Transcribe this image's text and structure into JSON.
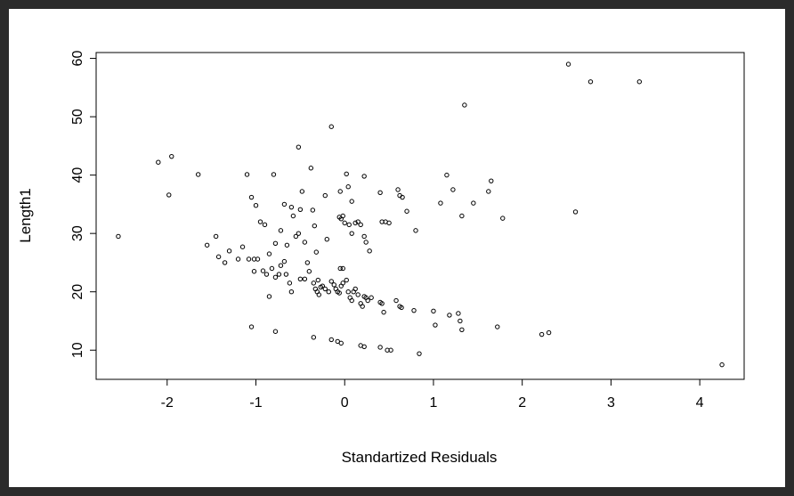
{
  "chart_data": {
    "type": "scatter",
    "xlabel": "Standartized Residuals",
    "ylabel": "Length1",
    "xlim": [
      -2.8,
      4.5
    ],
    "ylim": [
      5,
      61
    ],
    "x_ticks": [
      -2,
      -1,
      0,
      1,
      2,
      3,
      4
    ],
    "y_ticks": [
      10,
      20,
      30,
      40,
      50,
      60
    ],
    "grid": false,
    "points": [
      [
        -2.55,
        29.5
      ],
      [
        -2.1,
        42.2
      ],
      [
        -1.95,
        43.2
      ],
      [
        -1.98,
        36.6
      ],
      [
        -1.65,
        40.1
      ],
      [
        -1.55,
        28.0
      ],
      [
        -1.45,
        29.5
      ],
      [
        -1.42,
        26.0
      ],
      [
        -1.35,
        25.0
      ],
      [
        -1.3,
        27.0
      ],
      [
        -1.2,
        25.6
      ],
      [
        -1.15,
        27.7
      ],
      [
        -1.08,
        25.6
      ],
      [
        -1.02,
        25.6
      ],
      [
        -0.98,
        25.6
      ],
      [
        -1.1,
        40.1
      ],
      [
        -1.05,
        36.2
      ],
      [
        -1.0,
        34.8
      ],
      [
        -0.95,
        32.0
      ],
      [
        -0.9,
        31.5
      ],
      [
        -0.85,
        26.5
      ],
      [
        -1.02,
        23.5
      ],
      [
        -0.92,
        23.6
      ],
      [
        -0.88,
        23.0
      ],
      [
        -0.82,
        24.0
      ],
      [
        -0.78,
        22.5
      ],
      [
        -0.74,
        23.0
      ],
      [
        -0.72,
        24.5
      ],
      [
        -0.68,
        25.2
      ],
      [
        -0.66,
        23.0
      ],
      [
        -0.62,
        21.5
      ],
      [
        -0.6,
        20.0
      ],
      [
        -0.85,
        19.2
      ],
      [
        -0.8,
        40.1
      ],
      [
        -0.78,
        28.3
      ],
      [
        -0.72,
        30.5
      ],
      [
        -0.68,
        35.0
      ],
      [
        -0.65,
        28.0
      ],
      [
        -0.6,
        34.5
      ],
      [
        -0.58,
        33.0
      ],
      [
        -0.55,
        29.5
      ],
      [
        -0.52,
        30.0
      ],
      [
        -0.5,
        34.1
      ],
      [
        -0.48,
        37.2
      ],
      [
        -0.45,
        28.5
      ],
      [
        -0.42,
        25.0
      ],
      [
        -0.52,
        44.8
      ],
      [
        -0.38,
        41.2
      ],
      [
        -0.36,
        34.0
      ],
      [
        -0.34,
        31.3
      ],
      [
        -0.32,
        26.8
      ],
      [
        -0.3,
        22.0
      ],
      [
        -0.15,
        48.3
      ],
      [
        -0.22,
        36.5
      ],
      [
        -0.2,
        29.0
      ],
      [
        -0.5,
        22.2
      ],
      [
        -0.45,
        22.2
      ],
      [
        -0.4,
        23.5
      ],
      [
        -0.35,
        21.5
      ],
      [
        -0.33,
        20.5
      ],
      [
        -0.31,
        20.0
      ],
      [
        -0.29,
        19.5
      ],
      [
        -0.27,
        20.8
      ],
      [
        -0.25,
        21.0
      ],
      [
        -0.22,
        20.5
      ],
      [
        -0.18,
        20.0
      ],
      [
        -0.15,
        21.8
      ],
      [
        -0.12,
        21.2
      ],
      [
        -0.1,
        20.5
      ],
      [
        -0.08,
        20.0
      ],
      [
        -0.06,
        19.8
      ],
      [
        -0.04,
        21.0
      ],
      [
        -0.02,
        21.5
      ],
      [
        0.02,
        22.0
      ],
      [
        0.04,
        20.0
      ],
      [
        0.06,
        19.0
      ],
      [
        0.08,
        18.5
      ],
      [
        0.1,
        20.0
      ],
      [
        0.12,
        20.5
      ],
      [
        0.15,
        19.5
      ],
      [
        0.18,
        18.0
      ],
      [
        0.2,
        17.5
      ],
      [
        0.22,
        19.2
      ],
      [
        0.24,
        19.0
      ],
      [
        0.26,
        18.5
      ],
      [
        0.3,
        19.0
      ],
      [
        0.4,
        18.2
      ],
      [
        0.42,
        18.0
      ],
      [
        0.44,
        16.5
      ],
      [
        0.58,
        18.5
      ],
      [
        0.62,
        17.5
      ],
      [
        0.64,
        17.3
      ],
      [
        0.78,
        16.8
      ],
      [
        -0.06,
        32.8
      ],
      [
        -0.04,
        32.5
      ],
      [
        -0.02,
        33.0
      ],
      [
        0.0,
        31.8
      ],
      [
        0.05,
        31.5
      ],
      [
        0.08,
        30.0
      ],
      [
        0.12,
        31.8
      ],
      [
        0.15,
        32.0
      ],
      [
        0.18,
        31.5
      ],
      [
        0.22,
        29.5
      ],
      [
        0.24,
        28.5
      ],
      [
        0.28,
        27.0
      ],
      [
        0.02,
        40.2
      ],
      [
        -0.05,
        37.2
      ],
      [
        0.04,
        38.0
      ],
      [
        0.08,
        35.5
      ],
      [
        0.22,
        39.8
      ],
      [
        0.4,
        37.0
      ],
      [
        0.42,
        32.0
      ],
      [
        0.46,
        32.0
      ],
      [
        0.5,
        31.8
      ],
      [
        0.6,
        37.5
      ],
      [
        0.62,
        36.5
      ],
      [
        0.65,
        36.2
      ],
      [
        0.7,
        33.8
      ],
      [
        0.8,
        30.5
      ],
      [
        -0.05,
        24.0
      ],
      [
        -0.02,
        24.0
      ],
      [
        -1.05,
        14.0
      ],
      [
        -0.78,
        13.2
      ],
      [
        -0.35,
        12.2
      ],
      [
        -0.15,
        11.8
      ],
      [
        -0.08,
        11.5
      ],
      [
        -0.04,
        11.2
      ],
      [
        0.18,
        10.8
      ],
      [
        0.22,
        10.6
      ],
      [
        0.4,
        10.5
      ],
      [
        0.48,
        10.0
      ],
      [
        0.52,
        10.0
      ],
      [
        0.84,
        9.4
      ],
      [
        1.0,
        16.7
      ],
      [
        1.02,
        14.3
      ],
      [
        1.18,
        16.0
      ],
      [
        1.28,
        16.3
      ],
      [
        1.3,
        15.0
      ],
      [
        1.32,
        13.5
      ],
      [
        1.72,
        14.0
      ],
      [
        2.22,
        12.7
      ],
      [
        2.3,
        13.0
      ],
      [
        1.08,
        35.2
      ],
      [
        1.15,
        40.0
      ],
      [
        1.22,
        37.5
      ],
      [
        1.32,
        33.0
      ],
      [
        1.45,
        35.2
      ],
      [
        1.62,
        37.2
      ],
      [
        1.65,
        39.0
      ],
      [
        1.78,
        32.6
      ],
      [
        1.35,
        52.0
      ],
      [
        2.52,
        59.0
      ],
      [
        2.77,
        56.0
      ],
      [
        3.32,
        56.0
      ],
      [
        2.6,
        33.7
      ],
      [
        4.25,
        7.5
      ]
    ]
  }
}
